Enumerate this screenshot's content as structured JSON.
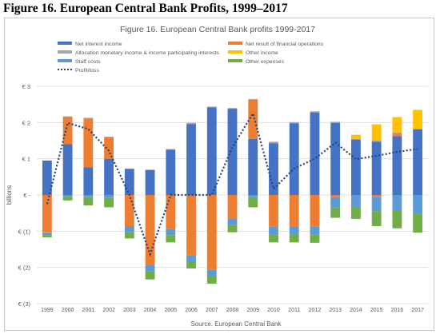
{
  "figure_heading": "Figure 16. European Central Bank Profits, 1999–2017",
  "colors": {
    "net_interest": "#4472c4",
    "financial_ops": "#ed7d31",
    "allocation": "#a5a5a5",
    "other_income": "#ffc000",
    "staff_costs": "#5b9bd5",
    "other_expenses": "#70ad47",
    "profit_loss": "#264478",
    "grid": "#d9d9d9",
    "text": "#595959"
  },
  "chart_data": {
    "type": "bar",
    "stacked": true,
    "title": "Figure 16. European Central Bank profits 1999-2017",
    "ylabel": "billions",
    "source": "Source. European Central Bank",
    "ylim": [
      -3,
      3
    ],
    "y_ticks": [
      3,
      2,
      1,
      0,
      -1,
      -2,
      -3
    ],
    "y_tick_labels": [
      "€ 3",
      "€ 2",
      "€ 1",
      "€ -",
      "€ (1)",
      "€ (2)",
      "€ (3)"
    ],
    "grid": true,
    "legend_position": "top",
    "categories": [
      "1999",
      "2000",
      "2001",
      "2002",
      "2003",
      "2004",
      "2005",
      "2006",
      "2007",
      "2008",
      "2009",
      "2010",
      "2011",
      "2012",
      "2013",
      "2014",
      "2015",
      "2016",
      "2017"
    ],
    "series": [
      {
        "name": "Net interest income",
        "key": "net_interest",
        "values": [
          0.95,
          1.4,
          0.76,
          1.0,
          0.72,
          0.69,
          1.25,
          1.96,
          2.42,
          2.38,
          1.55,
          1.43,
          1.98,
          2.28,
          1.99,
          1.53,
          1.47,
          1.62,
          1.81
        ]
      },
      {
        "name": "Net result of financial operations",
        "key": "financial_ops",
        "values": [
          -1.03,
          0.75,
          1.35,
          0.59,
          -0.86,
          -1.94,
          -0.94,
          -1.66,
          -2.07,
          -0.66,
          1.08,
          -0.88,
          -0.88,
          -0.88,
          -0.06,
          0,
          -0.05,
          0.08,
          0
        ]
      },
      {
        "name": "Allocation monetary income & income participating interests",
        "key": "allocation",
        "values": [
          -0.02,
          0.02,
          0.02,
          0.02,
          0.01,
          0.01,
          0.02,
          0.03,
          0.02,
          0.02,
          0.02,
          0.04,
          0.03,
          0.03,
          0.03,
          0.02,
          0.03,
          0.03,
          0.02
        ]
      },
      {
        "name": "Other income",
        "key": "other_income",
        "values": [
          0,
          0,
          0,
          0,
          0,
          0,
          0,
          0,
          0,
          0,
          0,
          0,
          0,
          0,
          0,
          0.11,
          0.45,
          0.42,
          0.52
        ]
      },
      {
        "name": "Staff costs",
        "key": "staff_costs",
        "values": [
          -0.06,
          -0.05,
          -0.06,
          -0.08,
          -0.17,
          -0.17,
          -0.17,
          -0.17,
          -0.18,
          -0.17,
          -0.06,
          -0.21,
          -0.21,
          -0.22,
          -0.29,
          -0.33,
          -0.4,
          -0.44,
          -0.52
        ]
      },
      {
        "name": "Other expenses",
        "key": "other_expenses",
        "values": [
          -0.06,
          -0.1,
          -0.23,
          -0.26,
          -0.17,
          -0.22,
          -0.2,
          -0.2,
          -0.2,
          -0.2,
          -0.28,
          -0.22,
          -0.22,
          -0.22,
          -0.28,
          -0.33,
          -0.41,
          -0.48,
          -0.52
        ]
      }
    ],
    "line": {
      "name": "Profit/loss",
      "key": "profit_loss",
      "values": [
        -0.25,
        1.99,
        1.82,
        1.22,
        0,
        -1.64,
        0,
        0,
        0,
        1.32,
        2.25,
        0.17,
        0.73,
        1.0,
        1.44,
        0.99,
        1.08,
        1.19,
        1.27
      ]
    }
  }
}
